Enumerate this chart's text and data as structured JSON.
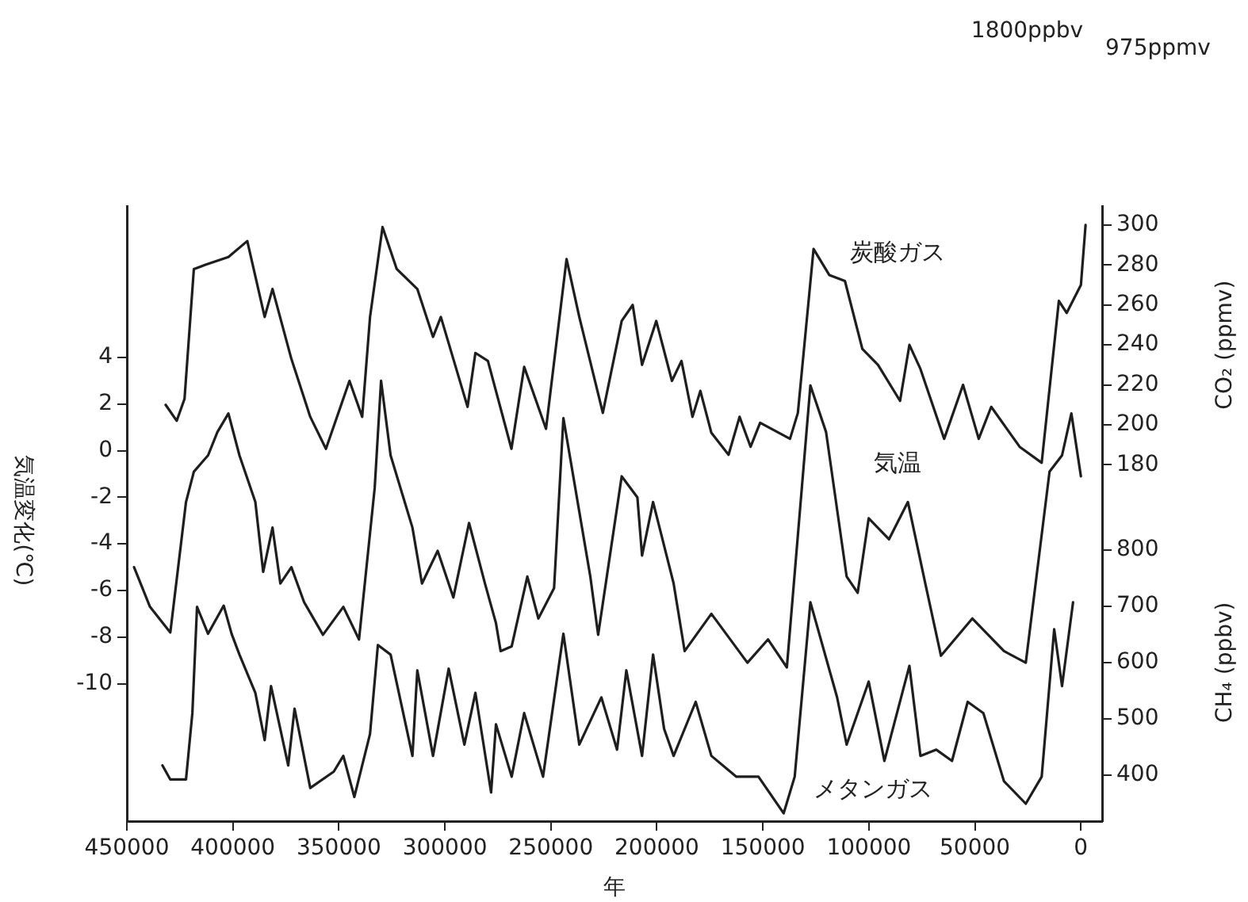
{
  "chart_data": {
    "type": "line",
    "xlabel": "年",
    "ylabel": "気温変化(℃)",
    "y2label": "CO₂ (ppmv)",
    "y3label": "CH₄ (ppbv)",
    "xlim": [
      450000,
      -10000
    ],
    "xticks": [
      450000,
      400000,
      350000,
      300000,
      250000,
      200000,
      150000,
      100000,
      50000,
      0
    ],
    "ylim": [
      -15.9,
      10.5
    ],
    "yticks": [
      -10,
      -8,
      -6,
      -4,
      -2,
      0,
      2,
      4
    ],
    "y2lim": [
      1.6,
      309.5
    ],
    "y2ticks": [
      180,
      200,
      220,
      240,
      260,
      280,
      300
    ],
    "y3lim": [
      318,
      1411
    ],
    "y3ticks": [
      400,
      500,
      600,
      700,
      800
    ],
    "grid": false,
    "legend": false,
    "marker": "none",
    "annotations": [
      "1800ppbv",
      "975ppmv"
    ],
    "series": [
      {
        "name": "炭酸ガス",
        "color": "#1e1e1e",
        "axis": "y2",
        "x": [
          431700,
          426500,
          422800,
          418400,
          413200,
          402100,
          393200,
          385000,
          381300,
          372400,
          363500,
          356100,
          345000,
          339000,
          335300,
          329400,
          322700,
          313000,
          305600,
          301900,
          289300,
          285600,
          279700,
          268600,
          262600,
          252300,
          242600,
          236600,
          225500,
          216600,
          211400,
          207000,
          200300,
          192900,
          188400,
          183200,
          179500,
          174300,
          166200,
          161000,
          155800,
          151300,
          137200,
          133500,
          126100,
          118700,
          111300,
          103100,
          95700,
          85300,
          80900,
          75700,
          64500,
          55600,
          48200,
          42300,
          28900,
          18500,
          10400,
          6700,
          0,
          -2200
        ],
        "values": [
          210,
          202,
          213,
          278,
          280,
          284,
          292,
          254,
          268,
          233,
          204,
          188,
          222,
          204,
          254,
          299,
          278,
          268,
          244,
          254,
          209,
          236,
          232,
          188,
          229,
          198,
          283,
          254,
          206,
          252,
          260,
          230,
          252,
          222,
          232,
          204,
          217,
          196,
          185,
          204,
          189,
          201,
          193,
          206,
          288,
          275,
          272,
          238,
          230,
          212,
          240,
          228,
          193,
          220,
          193,
          209,
          189,
          181,
          262,
          256,
          270,
          300
        ]
      },
      {
        "name": "気温",
        "color": "#1e1e1e",
        "axis": "y",
        "x": [
          446600,
          439100,
          429500,
          422100,
          418400,
          411700,
          407300,
          402100,
          396900,
          389400,
          385700,
          381300,
          377600,
          372400,
          366400,
          357500,
          347900,
          340500,
          333100,
          330100,
          325600,
          315300,
          310800,
          303400,
          296000,
          288600,
          281100,
          275900,
          273700,
          268500,
          261100,
          255900,
          248500,
          244100,
          231400,
          227700,
          216600,
          209200,
          207000,
          201800,
          192100,
          186900,
          174300,
          157300,
          147600,
          138700,
          127600,
          120200,
          110500,
          105300,
          100100,
          90500,
          81600,
          73400,
          66000,
          51200,
          36300,
          26000,
          14800,
          8900,
          4500,
          0
        ],
        "values": [
          -5.0,
          -6.7,
          -7.8,
          -2.2,
          -0.9,
          -0.2,
          0.8,
          1.6,
          -0.2,
          -2.2,
          -5.2,
          -3.3,
          -5.7,
          -5.0,
          -6.5,
          -7.9,
          -6.7,
          -8.1,
          -1.6,
          3.0,
          -0.2,
          -3.3,
          -5.7,
          -4.3,
          -6.3,
          -3.1,
          -5.7,
          -7.4,
          -8.6,
          -8.4,
          -5.4,
          -7.2,
          -5.9,
          1.4,
          -5.4,
          -7.9,
          -1.1,
          -2.0,
          -4.5,
          -2.2,
          -5.7,
          -8.6,
          -7.0,
          -9.1,
          -8.1,
          -9.3,
          2.8,
          0.8,
          -5.4,
          -6.1,
          -2.9,
          -3.8,
          -2.2,
          -5.7,
          -8.8,
          -7.2,
          -8.6,
          -9.1,
          -0.9,
          -0.2,
          1.6,
          -1.1
        ]
      },
      {
        "name": "メタンガス",
        "color": "#1e1e1e",
        "axis": "y3",
        "x": [
          433200,
          429500,
          422100,
          419100,
          416900,
          411700,
          404300,
          400600,
          396900,
          389400,
          385000,
          382000,
          373900,
          370900,
          363500,
          352400,
          347900,
          342700,
          335300,
          331600,
          325600,
          315300,
          313000,
          305600,
          298200,
          290800,
          285600,
          278200,
          275900,
          268500,
          262600,
          253700,
          244100,
          236600,
          226200,
          218800,
          214400,
          207000,
          201800,
          196600,
          192100,
          181700,
          174300,
          162500,
          152100,
          140200,
          135000,
          127600,
          115000,
          110500,
          100100,
          92700,
          80900,
          75700,
          68200,
          60800,
          53400,
          46000,
          36300,
          26000,
          18500,
          12600,
          8900,
          3700
        ],
        "values": [
          417,
          392,
          392,
          510,
          699,
          651,
          701,
          651,
          614,
          546,
          462,
          558,
          417,
          518,
          377,
          406,
          434,
          361,
          473,
          631,
          614,
          434,
          586,
          434,
          589,
          454,
          546,
          369,
          490,
          397,
          510,
          397,
          651,
          454,
          538,
          445,
          586,
          434,
          614,
          482,
          434,
          530,
          434,
          397,
          397,
          332,
          397,
          707,
          538,
          454,
          566,
          425,
          594,
          434,
          445,
          425,
          530,
          510,
          389,
          349,
          397,
          659,
          558,
          707
        ]
      }
    ]
  }
}
